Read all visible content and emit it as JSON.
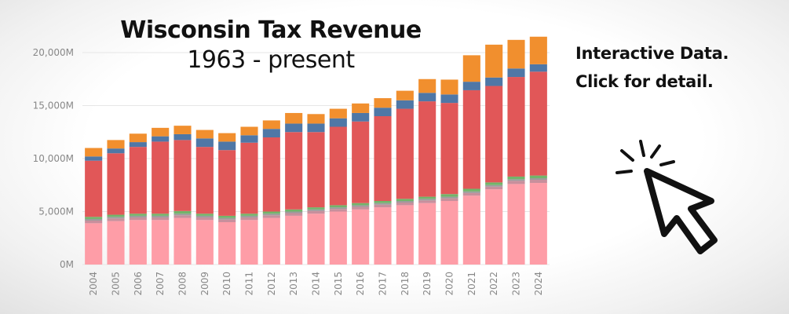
{
  "header": {
    "title": "Wisconsin Tax Revenue",
    "subtitle": "1963 - present"
  },
  "cta": {
    "line1": "Interactive Data.",
    "line2": "Click for detail."
  },
  "icons": {
    "cursor": "cursor-click-icon"
  },
  "colors": {
    "pink": "#FE9DA7",
    "mauve": "#C88F9C",
    "gray": "#9B9B9B",
    "green": "#72B46A",
    "red": "#E15758",
    "blue": "#4F77A6",
    "orange": "#F18F2E",
    "axis_text": "#888888",
    "grid": "#e6e6e6"
  },
  "chart_data": {
    "type": "bar",
    "stacked": true,
    "categories": [
      "2004",
      "2005",
      "2006",
      "2007",
      "2008",
      "2009",
      "2010",
      "2011",
      "2012",
      "2013",
      "2014",
      "2015",
      "2016",
      "2017",
      "2018",
      "2019",
      "2020",
      "2021",
      "2022",
      "2023",
      "2024"
    ],
    "series": [
      {
        "color": "#FE9DA7",
        "values": [
          3900,
          4100,
          4200,
          4200,
          4400,
          4200,
          4000,
          4200,
          4400,
          4600,
          4800,
          5000,
          5200,
          5400,
          5600,
          5800,
          6000,
          6500,
          7100,
          7600,
          7700
        ]
      },
      {
        "color": "#C88F9C",
        "values": [
          250,
          250,
          250,
          250,
          250,
          250,
          250,
          250,
          250,
          250,
          250,
          250,
          250,
          250,
          250,
          250,
          250,
          250,
          250,
          300,
          300
        ]
      },
      {
        "color": "#9B9B9B",
        "values": [
          150,
          150,
          150,
          150,
          150,
          150,
          150,
          150,
          150,
          150,
          150,
          150,
          150,
          150,
          150,
          150,
          150,
          150,
          150,
          150,
          150
        ]
      },
      {
        "color": "#72B46A",
        "values": [
          200,
          200,
          200,
          200,
          250,
          200,
          200,
          200,
          200,
          200,
          200,
          200,
          200,
          200,
          200,
          200,
          250,
          250,
          250,
          250,
          250
        ]
      },
      {
        "color": "#E15758",
        "values": [
          5300,
          5800,
          6300,
          6800,
          6700,
          6300,
          6200,
          6700,
          7000,
          7300,
          7100,
          7400,
          7700,
          8000,
          8500,
          9000,
          8600,
          9300,
          9100,
          9400,
          9800
        ]
      },
      {
        "color": "#4F77A6",
        "values": [
          400,
          450,
          450,
          500,
          550,
          800,
          800,
          700,
          800,
          800,
          800,
          800,
          800,
          800,
          800,
          800,
          800,
          800,
          800,
          800,
          700
        ]
      },
      {
        "color": "#F18F2E",
        "values": [
          800,
          800,
          800,
          800,
          800,
          800,
          800,
          800,
          800,
          1000,
          900,
          900,
          900,
          900,
          900,
          1300,
          1400,
          2500,
          3100,
          2700,
          2600
        ]
      }
    ],
    "xlabel": "",
    "ylabel": "",
    "yticks": [
      "0M",
      "5,000M",
      "10,000M",
      "15,000M",
      "20,000M"
    ],
    "ytick_values": [
      0,
      5000,
      10000,
      15000,
      20000
    ],
    "ylim": [
      0,
      22000
    ],
    "grid": true,
    "legend": "none"
  }
}
